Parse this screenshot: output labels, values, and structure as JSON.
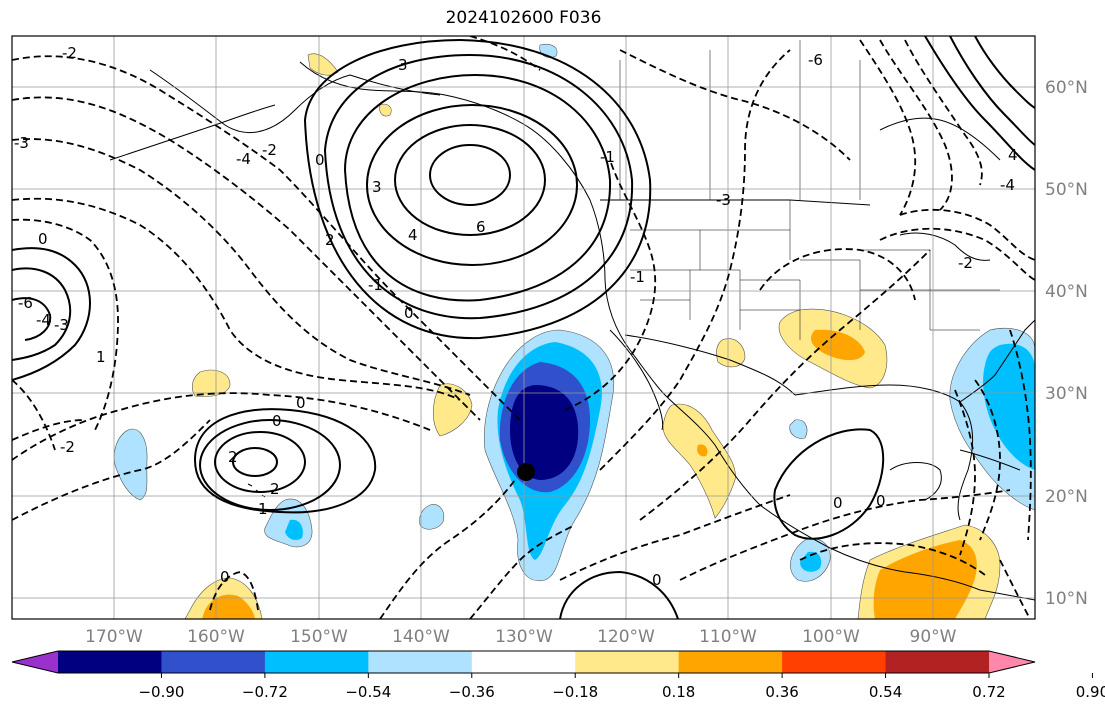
{
  "title": "2024102600 F036",
  "map": {
    "lon_range": [
      -180,
      -80
    ],
    "lat_range": [
      8,
      65
    ],
    "lat_ticks": [
      "60°N",
      "50°N",
      "40°N",
      "30°N",
      "20°N",
      "10°N"
    ],
    "lon_ticks": [
      "170°W",
      "160°W",
      "150°W",
      "140°W",
      "130°W",
      "120°W",
      "110°W",
      "100°W",
      "90°W"
    ],
    "gridlines": true,
    "marker": {
      "lon": -130,
      "lat": 22
    }
  },
  "contour_labels": [
    "-2",
    "-3",
    "-4",
    "-6",
    "2",
    "3",
    "4",
    "6",
    "0",
    "-1",
    "1"
  ],
  "colorbar": {
    "ticks": [
      "−0.90",
      "−0.72",
      "−0.54",
      "−0.36",
      "−0.18",
      "0.18",
      "0.36",
      "0.54",
      "0.72",
      "0.90"
    ],
    "colors": [
      "#9932cc",
      "#000080",
      "#3050cc",
      "#00bfff",
      "#aee2ff",
      "#ffffff",
      "#ffe98a",
      "#ffa500",
      "#ff4000",
      "#b22222",
      "#ff88aa"
    ],
    "extend": "both"
  }
}
